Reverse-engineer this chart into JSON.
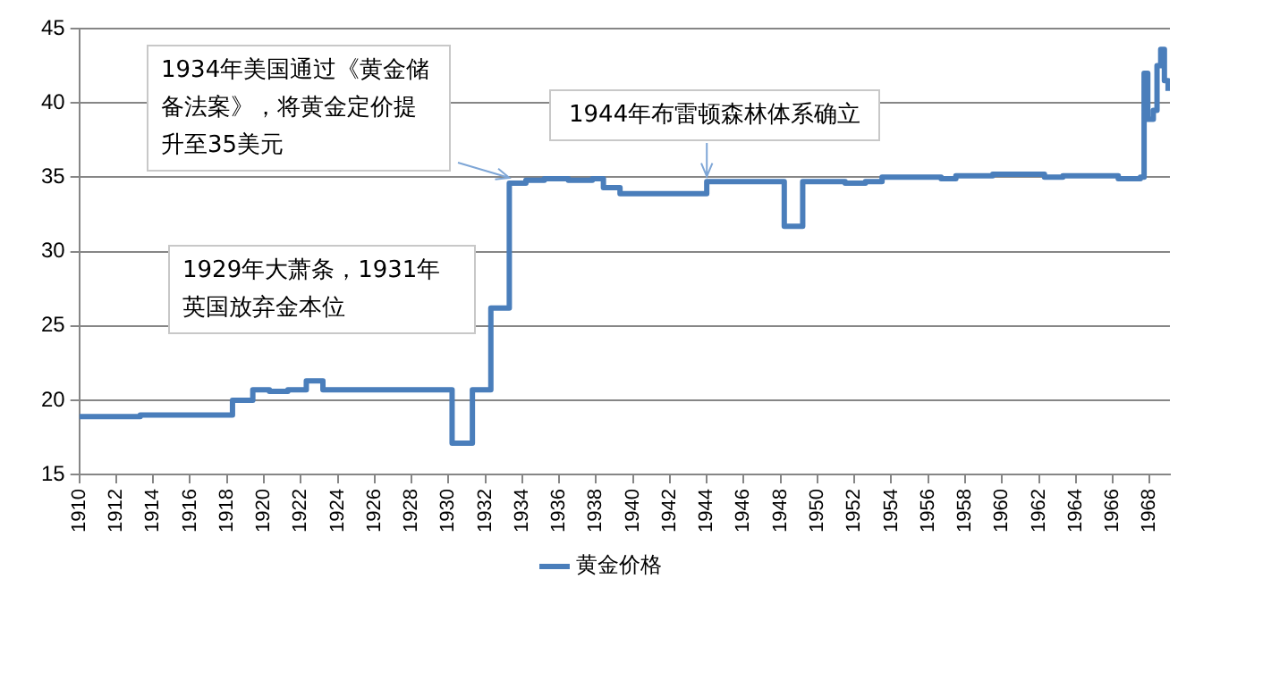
{
  "chart_data": {
    "type": "line",
    "grid": "y",
    "legend": "bottom",
    "marker": "none",
    "line_style": "solid",
    "xlim": [
      1910,
      1969.1
    ],
    "xticks": [
      1910,
      1912,
      1914,
      1916,
      1918,
      1920,
      1922,
      1924,
      1926,
      1928,
      1930,
      1932,
      1934,
      1936,
      1938,
      1940,
      1942,
      1944,
      1946,
      1948,
      1950,
      1952,
      1954,
      1956,
      1958,
      1960,
      1962,
      1964,
      1966,
      1968
    ],
    "ylim": [
      15,
      45
    ],
    "yticks": [
      15,
      20,
      25,
      30,
      35,
      40,
      45
    ],
    "series": [
      {
        "name": "黄金价格",
        "color": "#4a7ebb",
        "type": "step",
        "x": [
          1910,
          1913.3,
          1918.3,
          1919.4,
          1920.3,
          1921.3,
          1922.3,
          1923.2,
          1930.2,
          1931.3,
          1932.3,
          1933.3,
          1934.2,
          1935.2,
          1936.5,
          1937.8,
          1938.4,
          1939.3,
          1944.0,
          1948.2,
          1949.2,
          1951.5,
          1952.6,
          1953.5,
          1956.7,
          1957.5,
          1959.5,
          1962.3,
          1963.3,
          1966.3,
          1967.5,
          1967.7,
          1967.9,
          1968.2,
          1968.4,
          1968.6,
          1968.8,
          1969.0
        ],
        "values": [
          18.9,
          19.0,
          20.0,
          20.7,
          20.6,
          20.7,
          21.3,
          20.7,
          17.1,
          20.7,
          26.2,
          34.6,
          34.8,
          34.9,
          34.8,
          34.9,
          34.3,
          33.9,
          34.7,
          31.7,
          34.7,
          34.6,
          34.7,
          35.0,
          34.9,
          35.1,
          35.2,
          35.0,
          35.1,
          34.9,
          35.0,
          42.0,
          38.9,
          39.5,
          42.5,
          43.6,
          41.5,
          40.8
        ]
      }
    ],
    "annotations": [
      {
        "text": "1934年美国通过《黄金储备法案》，将黄金定价提升至35美元",
        "x": 1933.3,
        "y": 34.6
      },
      {
        "text": "1944年布雷顿森林体系确立",
        "x": 1944.0,
        "y": 34.7
      },
      "1929年大萧条，1931年英国放弃金本位"
    ]
  }
}
